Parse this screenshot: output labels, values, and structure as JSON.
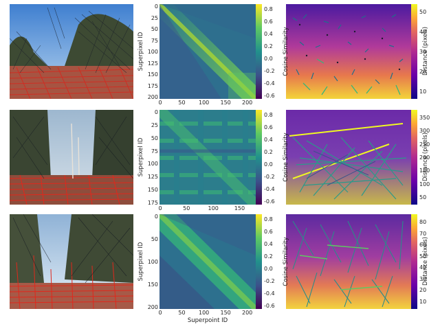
{
  "figure": {
    "rows": [
      {
        "matrix": {
          "y_ticks": [
            "0",
            "25",
            "50",
            "75",
            "100",
            "125",
            "150",
            "175",
            "200"
          ],
          "x_ticks": [
            "0",
            "50",
            "100",
            "150",
            "200"
          ],
          "ylabel": "Superpixel ID",
          "xlabel": "",
          "colorbar_ticks": [
            "0.8",
            "0.6",
            "0.4",
            "0.2",
            "0.0",
            "-0.2",
            "-0.4",
            "-0.6"
          ],
          "colorbar_label": "Cosine Similarity"
        },
        "distance": {
          "colorbar_ticks": [
            "50",
            "40",
            "30",
            "20",
            "10"
          ],
          "colorbar_label": "Distance (pixels)"
        }
      },
      {
        "matrix": {
          "y_ticks": [
            "0",
            "25",
            "50",
            "75",
            "100",
            "125",
            "150",
            "175"
          ],
          "x_ticks": [
            "0",
            "50",
            "100",
            "150"
          ],
          "ylabel": "Superpixel ID",
          "xlabel": "",
          "colorbar_ticks": [
            "0.8",
            "0.6",
            "0.4",
            "0.2",
            "0.0",
            "-0.2",
            "-0.4",
            "-0.6"
          ],
          "colorbar_label": "Cosine Similarity"
        },
        "distance": {
          "colorbar_ticks": [
            "350",
            "300",
            "250",
            "200",
            "150",
            "100",
            "50"
          ],
          "colorbar_label": "Distance (pixels)"
        }
      },
      {
        "matrix": {
          "y_ticks": [
            "0",
            "50",
            "100",
            "150",
            "200"
          ],
          "x_ticks": [
            "0",
            "50",
            "100",
            "150",
            "200"
          ],
          "ylabel": "Superpixel ID",
          "xlabel": "Superpoint ID",
          "colorbar_ticks": [
            "0.8",
            "0.6",
            "0.4",
            "0.2",
            "0.0",
            "-0.2",
            "-0.4",
            "-0.6"
          ],
          "colorbar_label": "Cosine Similarity"
        },
        "distance": {
          "colorbar_ticks": [
            "80",
            "70",
            "60",
            "50",
            "40",
            "30",
            "20",
            "10"
          ],
          "colorbar_label": "Distance (pixels)"
        }
      }
    ]
  }
}
